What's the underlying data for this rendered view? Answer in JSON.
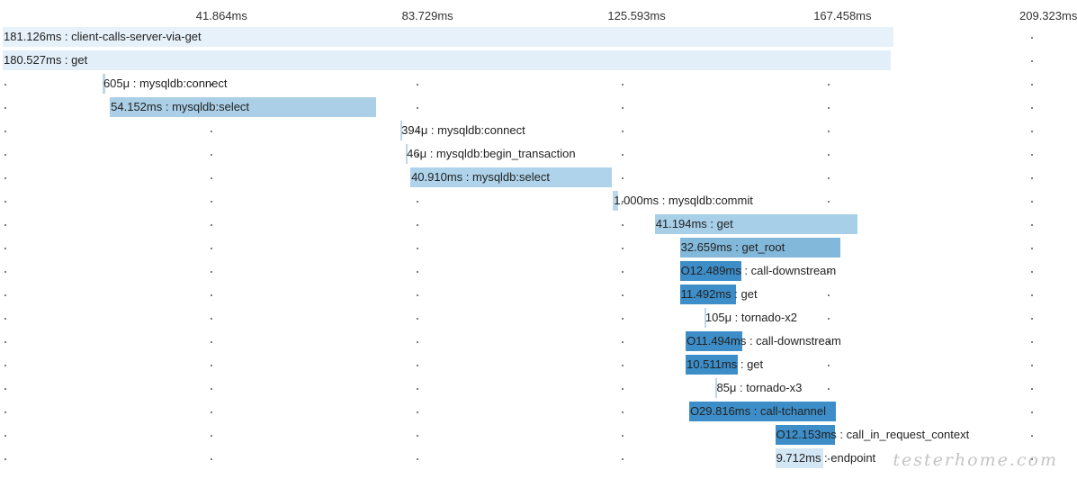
{
  "axis": {
    "ticks": [
      "41.864ms",
      "83.729ms",
      "125.593ms",
      "167.458ms",
      "209.323ms"
    ]
  },
  "chart_data": {
    "type": "gantt",
    "x_unit": "ms",
    "x_range": [
      0,
      209.323
    ],
    "spans": [
      {
        "label": "181.126ms : client-calls-server-via-get",
        "start_ms": 0,
        "duration_ms": 181.126,
        "color": "#e7f1f9",
        "marker": ""
      },
      {
        "label": "180.527ms : get",
        "start_ms": 0,
        "duration_ms": 180.527,
        "color": "#e2eef8",
        "marker": ""
      },
      {
        "label": "605μ : mysqldb:connect",
        "start_ms": 20.3,
        "duration_ms": 0.605,
        "color": "#bcd6ea",
        "marker": ""
      },
      {
        "label": "54.152ms : mysqldb:select",
        "start_ms": 21.8,
        "duration_ms": 54.152,
        "color": "#aacfe6",
        "marker": ""
      },
      {
        "label": "394μ : mysqldb:connect",
        "start_ms": 80.9,
        "duration_ms": 0.394,
        "color": "#bcd6ea",
        "marker": ""
      },
      {
        "label": "46μ : mysqldb:begin_transaction",
        "start_ms": 82.0,
        "duration_ms": 0.046,
        "color": "#bcd6ea",
        "marker": ""
      },
      {
        "label": "40.910ms : mysqldb:select",
        "start_ms": 82.9,
        "duration_ms": 40.91,
        "color": "#aed3ea",
        "marker": ""
      },
      {
        "label": "1.000ms : mysqldb:commit",
        "start_ms": 124.1,
        "duration_ms": 1.0,
        "color": "#bcd6ea",
        "marker": ""
      },
      {
        "label": "41.194ms : get",
        "start_ms": 132.6,
        "duration_ms": 41.194,
        "color": "#a7cfe8",
        "marker": ""
      },
      {
        "label": "32.659ms : get_root",
        "start_ms": 137.7,
        "duration_ms": 32.659,
        "color": "#82b8da",
        "marker": ""
      },
      {
        "label": "12.489ms : call-downstream",
        "start_ms": 137.7,
        "duration_ms": 12.489,
        "color": "#3d8ec8",
        "marker": "O"
      },
      {
        "label": "11.492ms : get",
        "start_ms": 137.7,
        "duration_ms": 11.492,
        "color": "#3d8ec8",
        "marker": ""
      },
      {
        "label": "105μ : tornado-x2",
        "start_ms": 142.7,
        "duration_ms": 0.105,
        "color": "#bcd6ea",
        "marker": ""
      },
      {
        "label": "11.494ms : call-downstream",
        "start_ms": 138.9,
        "duration_ms": 11.494,
        "color": "#3d8ec8",
        "marker": "O"
      },
      {
        "label": "10.511ms : get",
        "start_ms": 138.9,
        "duration_ms": 10.511,
        "color": "#3d8ec8",
        "marker": ""
      },
      {
        "label": "85μ : tornado-x3",
        "start_ms": 145.0,
        "duration_ms": 0.085,
        "color": "#bcd6ea",
        "marker": ""
      },
      {
        "label": "29.816ms : call-tchannel",
        "start_ms": 139.6,
        "duration_ms": 29.816,
        "color": "#3d8ec8",
        "marker": "O"
      },
      {
        "label": "12.153ms : call_in_request_context",
        "start_ms": 157.1,
        "duration_ms": 12.153,
        "color": "#3d8ec8",
        "marker": "O"
      },
      {
        "label": "9.712ms : endpoint",
        "start_ms": 157.1,
        "duration_ms": 9.712,
        "color": "#d3e6f4",
        "marker": ""
      }
    ]
  },
  "watermark": "testerhome.com"
}
